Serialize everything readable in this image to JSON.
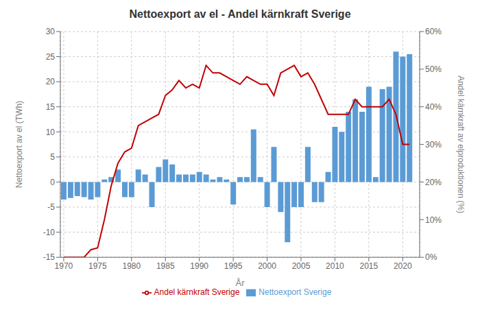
{
  "chart_data": {
    "type": "bar",
    "title": "Nettoexport av el - Andel kärnkraft Sverige",
    "xlabel": "År",
    "ylabel": "Nettoexport av el (TWh)",
    "y2label": "Andel kärnkraft av elproduktionen (%)",
    "x": [
      1970,
      1971,
      1972,
      1973,
      1974,
      1975,
      1976,
      1977,
      1978,
      1979,
      1980,
      1981,
      1982,
      1983,
      1984,
      1985,
      1986,
      1987,
      1988,
      1989,
      1990,
      1991,
      1992,
      1993,
      1994,
      1995,
      1996,
      1997,
      1998,
      1999,
      2000,
      2001,
      2002,
      2003,
      2004,
      2005,
      2006,
      2007,
      2008,
      2009,
      2010,
      2011,
      2012,
      2013,
      2014,
      2015,
      2016,
      2017,
      2018,
      2019,
      2020,
      2021
    ],
    "series": [
      {
        "name": "Nettoexport Sverige",
        "type": "bar",
        "color": "#5b9bd5",
        "values": [
          -3.5,
          -3.2,
          -2.8,
          -3.0,
          -3.5,
          -3.0,
          0.5,
          1.0,
          2.5,
          -3.0,
          -3.0,
          2.5,
          1.5,
          -5.0,
          3.0,
          4.5,
          3.5,
          1.5,
          1.5,
          1.5,
          2.0,
          1.5,
          0.5,
          1.0,
          0.5,
          -4.5,
          1.0,
          1.0,
          10.5,
          1.0,
          -5.0,
          7.0,
          -6.0,
          -12.0,
          -5.0,
          -5.0,
          7.0,
          -4.0,
          -4.0,
          2.0,
          11.0,
          10.0,
          14.0,
          16.5,
          14.0,
          19.0,
          1.0,
          18.5,
          19.0,
          26.0,
          25.0,
          25.5
        ]
      },
      {
        "name": "Andel kärnkraft Sverige",
        "type": "line",
        "color": "#c00000",
        "axis": "y2",
        "values": [
          0.0,
          0.0,
          0.0,
          0.0,
          2.0,
          2.5,
          10.0,
          19.0,
          25.0,
          28.0,
          29.0,
          35.0,
          36.0,
          37.0,
          38.0,
          43.0,
          44.5,
          47.0,
          45.0,
          46.0,
          45.0,
          51.0,
          49.0,
          49.0,
          48.0,
          47.0,
          46.0,
          48.0,
          47.0,
          46.0,
          46.0,
          43.0,
          49.0,
          50.0,
          51.0,
          48.0,
          49.0,
          46.0,
          42.0,
          38.0,
          38.0,
          38.0,
          38.0,
          42.0,
          40.0,
          40.0,
          40.0,
          40.0,
          42.0,
          38.0,
          30.0,
          30.0
        ]
      }
    ],
    "xlim": [
      1969.5,
      2022.5
    ],
    "xticks": [
      1970,
      1975,
      1980,
      1985,
      1990,
      1995,
      2000,
      2005,
      2010,
      2015,
      2020
    ],
    "ylim": [
      -15,
      30
    ],
    "yticks": [
      -15,
      -10,
      -5,
      0,
      5,
      10,
      15,
      20,
      25,
      30
    ],
    "y2lim": [
      0,
      60
    ],
    "y2ticks": [
      {
        "value": 0,
        "label": "0%"
      },
      {
        "value": 10,
        "label": "10%"
      },
      {
        "value": 20,
        "label": "20%"
      },
      {
        "value": 30,
        "label": "30%"
      },
      {
        "value": 40,
        "label": "40%"
      },
      {
        "value": 50,
        "label": "50%"
      },
      {
        "value": 60,
        "label": "60%"
      }
    ],
    "grid": true,
    "legend": "bottom"
  }
}
